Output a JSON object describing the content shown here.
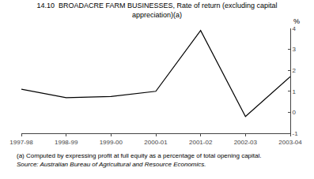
{
  "chart_data": {
    "type": "line",
    "title": "14.10  BROADACRE FARM BUSINESSES, Rate of return (excluding capital\nappreciation)(a)",
    "categories": [
      "1997-98",
      "1998-99",
      "1999-00",
      "2000-01",
      "2001-02",
      "2002-03",
      "2003-04"
    ],
    "values": [
      1.1,
      0.7,
      0.75,
      1.0,
      3.9,
      -0.2,
      1.7
    ],
    "color": "#000000",
    "ylim": [
      -1,
      4
    ],
    "yticks": [
      -1,
      0,
      1,
      2,
      3,
      4
    ],
    "ylabel": "%",
    "grid": false,
    "annotations": [
      "(a) Computed by expressing profit at full equity as a percentage of total opening capital.",
      "Source: Australian Bureau of Agricultural and Resource Economics."
    ]
  }
}
